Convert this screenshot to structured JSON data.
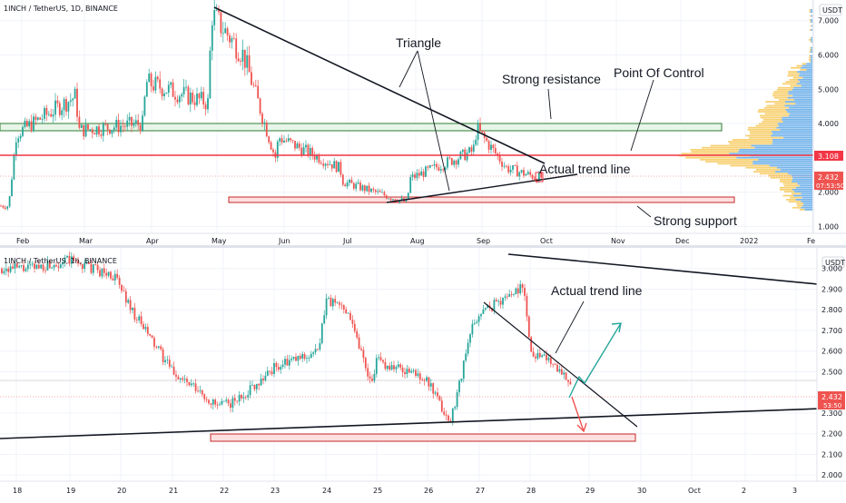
{
  "colors": {
    "up": "#26a69a",
    "down": "#ef5350",
    "poc_line": "#f23645",
    "resistance_border": "#2e7d32",
    "support_border": "#c62828",
    "support_fill": "#fde0e0",
    "vp_up": "#f7c95c",
    "vp_down": "#5fa8e8",
    "badge_poc": "#f23645",
    "badge_price": "#ef5350"
  },
  "top_pane": {
    "title": "1INCH / TetherUS, 1D, BINANCE",
    "currency": "USDT",
    "x_labels": [
      "Feb",
      "Mar",
      "Apr",
      "May",
      "Jun",
      "Jul",
      "Aug",
      "Sep",
      "Oct",
      "Nov",
      "Dec",
      "2022",
      "Fe"
    ],
    "y_labels": [
      "7.000",
      "6.000",
      "5.000",
      "4.000",
      "2.000",
      "1.000"
    ],
    "poc_badge": "3.108",
    "price_badge": "2.432",
    "timer_badge": "07:53:50",
    "annotations": {
      "triangle": "Triangle",
      "strong_resistance": "Strong resistance",
      "point_of_control": "Point Of Control",
      "actual_trend_line": "Actual trend line",
      "strong_support": "Strong support"
    }
  },
  "bottom_pane": {
    "title": "1INCH / TetherUS, 1h, BINANCE",
    "currency": "USDT",
    "x_labels": [
      "18",
      "19",
      "20",
      "21",
      "22",
      "23",
      "24",
      "25",
      "26",
      "27",
      "28",
      "29",
      "30",
      "Oct",
      "2",
      "3"
    ],
    "y_labels": [
      "3.000",
      "2.900",
      "2.800",
      "2.700",
      "2.600",
      "2.500",
      "2.300",
      "2.200",
      "2.100",
      "2.000"
    ],
    "price_badge": "2.432",
    "timer_badge": "53:50",
    "annotations": {
      "actual_trend_line": "Actual trend line"
    }
  },
  "chart_data": [
    {
      "type": "candlestick",
      "title": "1INCH / TetherUS, 1D, BINANCE",
      "y_axis": "USDT",
      "ylim": [
        0.8,
        7.6
      ],
      "months": [
        "Feb",
        "Mar",
        "Apr",
        "May",
        "Jun",
        "Jul",
        "Aug",
        "Sep",
        "Oct",
        "Nov",
        "Dec",
        "2022",
        "Fe"
      ],
      "close_path": [
        [
          "Jan",
          1.6
        ],
        [
          "Feb",
          3.7
        ],
        [
          "Feb",
          4.8
        ],
        [
          "Mar",
          3.8
        ],
        [
          "Mar",
          4.0
        ],
        [
          "Apr",
          5.2
        ],
        [
          "Apr",
          4.6
        ],
        [
          "May",
          7.2
        ],
        [
          "May",
          6.0
        ],
        [
          "May",
          3.0
        ],
        [
          "Jun",
          3.6
        ],
        [
          "Jun",
          2.7
        ],
        [
          "Jul",
          2.3
        ],
        [
          "Jul",
          1.7
        ],
        [
          "Aug",
          2.4
        ],
        [
          "Aug",
          3.2
        ],
        [
          "Sep",
          3.85
        ],
        [
          "Sep",
          2.7
        ],
        [
          "Sep",
          2.43
        ]
      ],
      "point_of_control": 3.108,
      "last_price": 2.432,
      "resistance_zone": [
        3.85,
        4.05
      ],
      "support_zone": [
        1.6,
        1.75
      ],
      "annotations": [
        "Triangle",
        "Strong resistance",
        "Point Of Control",
        "Actual trend line",
        "Strong support"
      ]
    },
    {
      "type": "candlestick",
      "title": "1INCH / TetherUS, 1h, BINANCE",
      "y_axis": "USDT",
      "ylim": [
        1.97,
        3.1
      ],
      "days": [
        "18",
        "19",
        "20",
        "21",
        "22",
        "23",
        "24",
        "25",
        "26",
        "27",
        "28",
        "29",
        "30",
        "Oct",
        "2",
        "3"
      ],
      "close_path": [
        [
          "18",
          3.0
        ],
        [
          "19",
          3.04
        ],
        [
          "19",
          2.96
        ],
        [
          "20",
          2.78
        ],
        [
          "21",
          2.5
        ],
        [
          "21",
          2.33
        ],
        [
          "22",
          2.36
        ],
        [
          "23",
          2.52
        ],
        [
          "23",
          2.6
        ],
        [
          "24",
          2.85
        ],
        [
          "24",
          2.8
        ],
        [
          "24",
          2.45
        ],
        [
          "25",
          2.55
        ],
        [
          "25",
          2.48
        ],
        [
          "26",
          2.45
        ],
        [
          "26",
          2.25
        ],
        [
          "26",
          2.72
        ],
        [
          "27",
          2.78
        ],
        [
          "27",
          2.92
        ],
        [
          "28",
          2.6
        ],
        [
          "28",
          2.55
        ],
        [
          "28",
          2.43
        ]
      ],
      "last_price": 2.432,
      "support_zone": [
        2.22,
        2.25
      ],
      "annotations": [
        "Actual trend line"
      ]
    }
  ]
}
